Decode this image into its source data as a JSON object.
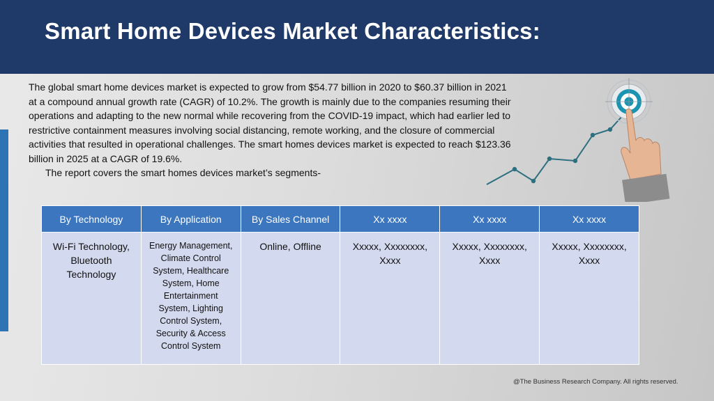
{
  "slide": {
    "title": "Smart Home Devices Market Characteristics:",
    "paragraph": "The global smart home devices market is expected to grow from $54.77 billion in 2020 to $60.37 billion in 2021 at a compound annual growth rate (CAGR) of 10.2%. The growth is mainly due to the companies resuming their operations and adapting to the new normal while recovering from the COVID-19 impact, which had earlier led to restrictive containment measures involving social distancing, remote working, and the closure of commercial activities that resulted in operational challenges. The smart homes devices market is expected to reach $123.36 billion in 2025 at a CAGR of 19.6%.",
    "segments_intro": "The report covers the smart homes devices market’s segments-",
    "footer": "@The Business Research Company. All rights reserved."
  },
  "table": {
    "headers": [
      "By Technology",
      "By Application",
      "By Sales Channel",
      "Xx xxxx",
      "Xx xxxx",
      "Xx xxxx"
    ],
    "cells": [
      "Wi-Fi Technology, Bluetooth Technology",
      "Energy Management, Climate Control System, Healthcare System, Home Entertainment System, Lighting Control System, Security & Access Control System",
      "Online, Offline",
      "Xxxxx, Xxxxxxxx, Xxxx",
      "Xxxxx, Xxxxxxxx, Xxxx",
      "Xxxxx, Xxxxxxxx, Xxxx"
    ]
  },
  "colors": {
    "header_bar": "#1f3a68",
    "table_header": "#3b76bf",
    "table_cell": "#d3d9ee",
    "accent_line": "#2e74b5",
    "graph_line": "#2b6f80"
  },
  "icons": [
    "target-icon",
    "pointing-hand-icon",
    "growth-line-graphic"
  ]
}
